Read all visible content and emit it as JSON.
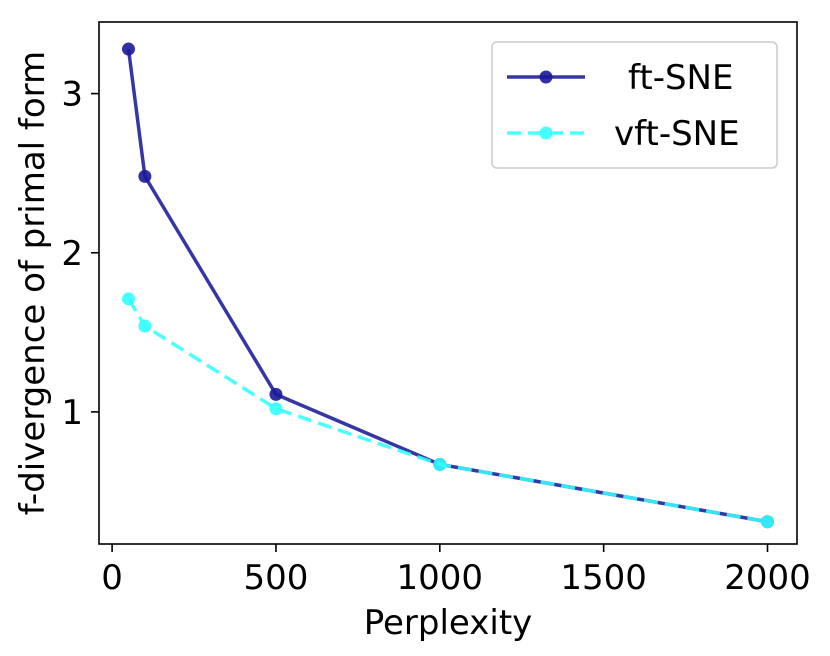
{
  "chart_data": {
    "type": "line",
    "title": "",
    "xlabel": "Perplexity",
    "ylabel": "f-divergence of primal form",
    "xlim": [
      -40,
      2090
    ],
    "ylim": [
      0.17,
      3.45
    ],
    "xticks": [
      0,
      500,
      1000,
      1500,
      2000
    ],
    "xtick_labels": [
      "0",
      "500",
      "1000",
      "1500",
      "2000"
    ],
    "yticks": [
      1,
      2,
      3
    ],
    "ytick_labels": [
      "1",
      "2",
      "3"
    ],
    "grid": false,
    "legend_position": "top-right",
    "x": [
      50,
      100,
      500,
      1000,
      2000
    ],
    "series": [
      {
        "name": "ft-SNE",
        "values": [
          3.28,
          2.48,
          1.11,
          0.67,
          0.31
        ],
        "color": "#1a1a99",
        "dash": "solid"
      },
      {
        "name": "vft-SNE",
        "values": [
          1.71,
          1.54,
          1.02,
          0.67,
          0.31
        ],
        "color": "#33ffff",
        "dash": "dashed"
      }
    ]
  }
}
